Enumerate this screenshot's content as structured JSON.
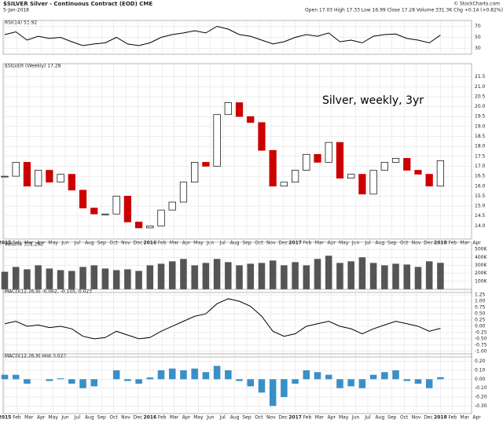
{
  "header": {
    "symbol": "$SILVER Silver - Continuous Contract (EOD) CME",
    "date": "5-Jan-2018",
    "quote": "Open 17.03  High 17.33  Low 16.99  Close 17.28  Volume 331.3K  Chg +0.14 (+0.82%)",
    "credit": "© StockCharts.com"
  },
  "xlabels": [
    "2015",
    "Feb",
    "Mar",
    "Apr",
    "May",
    "Jun",
    "Jul",
    "Aug",
    "Sep",
    "Oct",
    "Nov",
    "Dec",
    "2016",
    "Feb",
    "Mar",
    "Apr",
    "May",
    "Jun",
    "Jul",
    "Aug",
    "Sep",
    "Oct",
    "Nov",
    "Dec",
    "2017",
    "Feb",
    "Mar",
    "Apr",
    "May",
    "Jun",
    "Jul",
    "Aug",
    "Sep",
    "Oct",
    "Nov",
    "Dec",
    "2018",
    "Feb",
    "Mar",
    "Apr"
  ],
  "chart_data": [
    {
      "type": "line",
      "title": "RSI(14) 53.92",
      "color": "#000000",
      "values": [
        55,
        60,
        45,
        52,
        48,
        50,
        42,
        35,
        38,
        40,
        50,
        38,
        35,
        40,
        50,
        55,
        58,
        62,
        58,
        70,
        65,
        55,
        52,
        45,
        38,
        42,
        50,
        55,
        52,
        58,
        42,
        45,
        40,
        52,
        55,
        56,
        48,
        45,
        40,
        54
      ],
      "ylim": [
        25,
        75
      ],
      "yticks": [
        30,
        50,
        70
      ],
      "grid": true
    },
    {
      "type": "candle",
      "title": "$SILVER (Weekly) 17.28",
      "annotation": "Silver, weekly, 3yr",
      "up_color": "#000000",
      "down_color": "#cc0000",
      "values": [
        16.5,
        17.2,
        16.0,
        16.8,
        16.2,
        16.6,
        15.8,
        14.9,
        14.6,
        14.6,
        15.5,
        14.2,
        13.9,
        14.0,
        14.8,
        15.2,
        16.2,
        17.2,
        17.0,
        19.6,
        20.2,
        19.5,
        19.2,
        17.8,
        16.0,
        16.2,
        16.8,
        17.6,
        17.2,
        18.2,
        16.4,
        16.6,
        15.6,
        16.8,
        17.2,
        17.4,
        16.8,
        16.6,
        16.0,
        17.28
      ],
      "ylim": [
        13.5,
        22
      ],
      "yticks": [
        {
          "value": 14,
          "label": "14.0"
        },
        {
          "value": 14.5,
          "label": "14.5"
        },
        {
          "value": 15,
          "label": "15.0"
        },
        {
          "value": 15.5,
          "label": "15.5"
        },
        {
          "value": 16,
          "label": "16.0"
        },
        {
          "value": 16.5,
          "label": "16.5"
        },
        {
          "value": 17,
          "label": "17.0"
        },
        {
          "value": 17.5,
          "label": "17.5"
        },
        {
          "value": 18,
          "label": "18.0"
        },
        {
          "value": 18.5,
          "label": "18.5"
        },
        {
          "value": 19,
          "label": "19.0"
        },
        {
          "value": 19.5,
          "label": "19.5"
        },
        {
          "value": 20,
          "label": "20.0"
        },
        {
          "value": 20.5,
          "label": "20.5"
        },
        {
          "value": 21,
          "label": "21.0"
        },
        {
          "value": 21.5,
          "label": "21.5"
        }
      ],
      "grid": true,
      "xaxis": true
    },
    {
      "type": "bar",
      "title": "Volume 331,292",
      "color": "#555555",
      "values": [
        220000,
        280000,
        250000,
        300000,
        260000,
        240000,
        230000,
        280000,
        300000,
        260000,
        240000,
        250000,
        230000,
        300000,
        320000,
        350000,
        380000,
        300000,
        330000,
        380000,
        340000,
        300000,
        320000,
        330000,
        360000,
        300000,
        340000,
        300000,
        380000,
        420000,
        330000,
        350000,
        400000,
        330000,
        300000,
        320000,
        310000,
        280000,
        350000,
        331292
      ],
      "ylim": [
        0,
        550000
      ],
      "yticks": [
        {
          "value": 100000,
          "label": "100K"
        },
        {
          "value": 200000,
          "label": "200K"
        },
        {
          "value": 300000,
          "label": "300K"
        },
        {
          "value": 400000,
          "label": "400K"
        },
        {
          "value": 500000,
          "label": "500K"
        }
      ],
      "grid": true
    },
    {
      "type": "line",
      "title": "MACD(12,26,9) -0.082, -0.105, 0.023",
      "color": "#000000",
      "values": [
        0.1,
        0.2,
        0,
        0.05,
        -0.05,
        0,
        -0.1,
        -0.4,
        -0.5,
        -0.45,
        -0.2,
        -0.35,
        -0.5,
        -0.45,
        -0.2,
        0,
        0.2,
        0.4,
        0.5,
        0.9,
        1.1,
        1.0,
        0.8,
        0.4,
        -0.2,
        -0.4,
        -0.3,
        0,
        0.1,
        0.2,
        0,
        -0.1,
        -0.3,
        -0.1,
        0.05,
        0.2,
        0.1,
        0,
        -0.2,
        -0.082
      ],
      "ylim": [
        -1.1,
        1.35
      ],
      "yticks": [
        {
          "value": -1,
          "label": "-1.00"
        },
        {
          "value": -0.75,
          "label": "-0.75"
        },
        {
          "value": -0.5,
          "label": "-0.50"
        },
        {
          "value": -0.25,
          "label": "-0.25"
        },
        {
          "value": 0,
          "label": "0.00"
        },
        {
          "value": 0.25,
          "label": "0.25"
        },
        {
          "value": 0.5,
          "label": "0.50"
        },
        {
          "value": 0.75,
          "label": "0.75"
        },
        {
          "value": 1,
          "label": "1.00"
        },
        {
          "value": 1.25,
          "label": "1.25"
        }
      ],
      "grid": true
    },
    {
      "type": "bar",
      "title": "MACD(12,26,9) Hist 0.023",
      "color": "#3a8fc8",
      "values": [
        0.05,
        0.05,
        -0.05,
        0,
        -0.02,
        0.01,
        -0.05,
        -0.1,
        -0.08,
        0,
        0.1,
        -0.02,
        -0.05,
        0.02,
        0.1,
        0.12,
        0.1,
        0.12,
        0.08,
        0.15,
        0.1,
        -0.02,
        -0.08,
        -0.15,
        -0.3,
        -0.2,
        -0.05,
        0.1,
        0.08,
        0.05,
        -0.1,
        -0.08,
        -0.1,
        0.05,
        0.08,
        0.1,
        -0.02,
        -0.05,
        -0.1,
        0.023
      ],
      "ylim": [
        -0.35,
        0.25
      ],
      "yticks": [
        {
          "value": -0.3,
          "label": "-0.30"
        },
        {
          "value": -0.2,
          "label": "-0.20"
        },
        {
          "value": -0.1,
          "label": "-0.10"
        },
        {
          "value": 0,
          "label": "0.00"
        },
        {
          "value": 0.1,
          "label": "0.10"
        },
        {
          "value": 0.2,
          "label": "0.20"
        }
      ],
      "grid": true,
      "xaxis": true
    }
  ]
}
